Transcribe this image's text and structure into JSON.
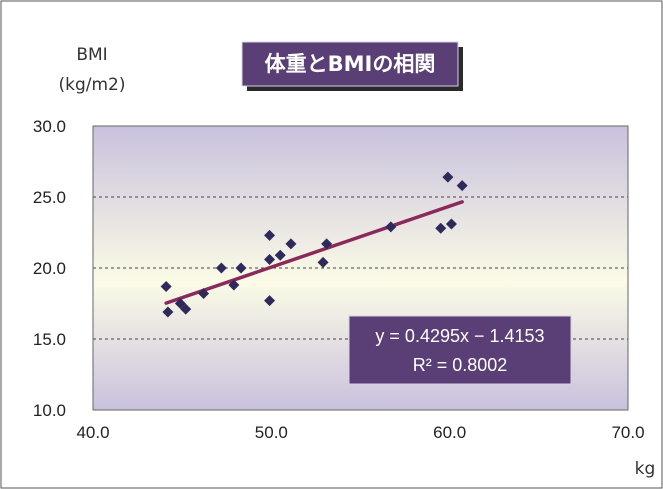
{
  "chart_data": {
    "type": "scatter",
    "title": "体重とBMIの相関",
    "xlabel": "kg",
    "ylabel": "BMI",
    "ylabel_unit": "(kg/m2)",
    "xlim": [
      40,
      70
    ],
    "ylim": [
      10,
      30
    ],
    "x_ticks": [
      "40.0",
      "50.0",
      "60.0",
      "70.0"
    ],
    "y_ticks": [
      "10.0",
      "15.0",
      "20.0",
      "25.0",
      "30.0"
    ],
    "grid": "horizontal dashed",
    "points": [
      {
        "x": 44.1,
        "y": 18.7
      },
      {
        "x": 44.2,
        "y": 16.9
      },
      {
        "x": 44.9,
        "y": 17.5
      },
      {
        "x": 45.2,
        "y": 17.1
      },
      {
        "x": 46.2,
        "y": 18.2
      },
      {
        "x": 47.2,
        "y": 20.0
      },
      {
        "x": 47.9,
        "y": 18.8
      },
      {
        "x": 48.3,
        "y": 20.0
      },
      {
        "x": 49.9,
        "y": 22.3
      },
      {
        "x": 49.9,
        "y": 20.6
      },
      {
        "x": 49.9,
        "y": 17.7
      },
      {
        "x": 50.5,
        "y": 20.9
      },
      {
        "x": 51.1,
        "y": 21.7
      },
      {
        "x": 52.9,
        "y": 20.4
      },
      {
        "x": 53.1,
        "y": 21.7
      },
      {
        "x": 56.7,
        "y": 22.9
      },
      {
        "x": 59.5,
        "y": 22.8
      },
      {
        "x": 59.9,
        "y": 26.4
      },
      {
        "x": 60.1,
        "y": 23.1
      },
      {
        "x": 60.7,
        "y": 25.8
      }
    ],
    "trendline": {
      "x_range": [
        44.1,
        60.7
      ],
      "slope": 0.4295,
      "intercept": -1.4153,
      "equation": "y = 0.4295x − 1.4153",
      "r_squared": "R² = 0.8002"
    },
    "colors": {
      "marker": "#2e2a5a",
      "trendline": "#8a2a5a",
      "title_box": "#5a3f76",
      "equation_box": "#5a3f76"
    }
  }
}
